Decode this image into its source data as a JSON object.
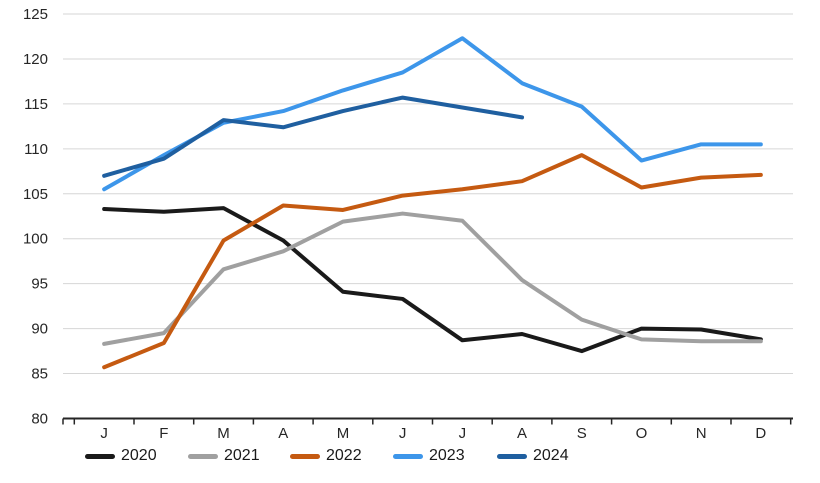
{
  "chart_data": {
    "type": "line",
    "title": "",
    "xlabel": "",
    "ylabel": "",
    "categories": [
      "J",
      "F",
      "M",
      "A",
      "M",
      "J",
      "J",
      "A",
      "S",
      "O",
      "N",
      "D"
    ],
    "ylim": [
      80,
      125
    ],
    "ytick_step": 5,
    "grid": true,
    "legend_position": "bottom",
    "axis_color": "#262626",
    "grid_color": "#d6d6d6",
    "series": [
      {
        "name": "2020",
        "color": "#1a1a1a",
        "values": [
          103.3,
          103,
          103.4,
          99.8,
          94.1,
          93.3,
          88.7,
          89.4,
          87.5,
          90,
          89.9,
          88.8
        ]
      },
      {
        "name": "2021",
        "color": "#a0a0a0",
        "values": [
          88.3,
          89.5,
          96.6,
          98.6,
          101.9,
          102.8,
          102,
          95.4,
          91,
          88.8,
          88.6,
          88.6
        ]
      },
      {
        "name": "2022",
        "color": "#c55a11",
        "values": [
          85.7,
          88.4,
          99.8,
          103.7,
          103.2,
          104.8,
          105.5,
          106.4,
          109.3,
          105.7,
          106.8,
          107.1
        ]
      },
      {
        "name": "2023",
        "color": "#3d96ea",
        "values": [
          105.5,
          109.3,
          112.9,
          114.2,
          116.5,
          118.5,
          122.3,
          117.3,
          114.7,
          108.7,
          110.5,
          110.5
        ]
      },
      {
        "name": "2024",
        "color": "#1f5fa0",
        "values": [
          107,
          108.9,
          113.2,
          112.4,
          114.2,
          115.7,
          114.6,
          113.5,
          null,
          null,
          null,
          null
        ]
      }
    ]
  }
}
